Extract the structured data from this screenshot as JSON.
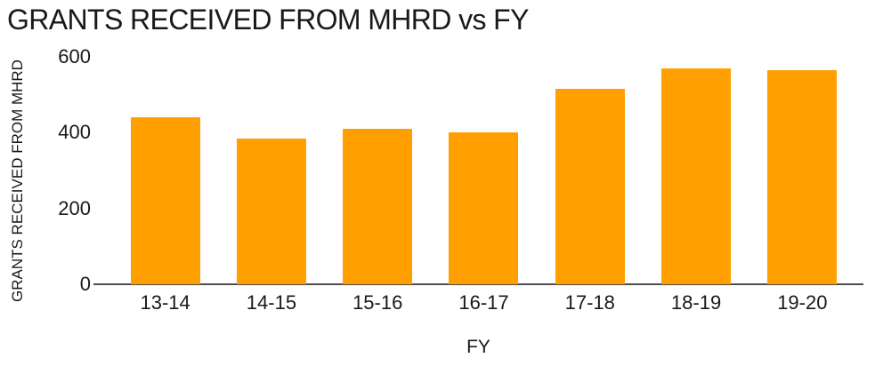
{
  "chart_data": {
    "type": "bar",
    "title": "GRANTS RECEIVED FROM MHRD vs FY",
    "xlabel": "FY",
    "ylabel": "GRANTS RECEIVED FROM MHRD",
    "categories": [
      "13-14",
      "14-15",
      "15-16",
      "16-17",
      "17-18",
      "18-19",
      "19-20"
    ],
    "values": [
      440,
      385,
      410,
      400,
      515,
      570,
      565
    ],
    "ylim": [
      0,
      600
    ],
    "yticks": [
      0,
      200,
      400,
      600
    ],
    "grid": false,
    "legend": false,
    "bar_color": "#FFA000",
    "axis_line_color": "#4d4d4d",
    "text_color": "#191919",
    "background_color": "#ffffff"
  }
}
